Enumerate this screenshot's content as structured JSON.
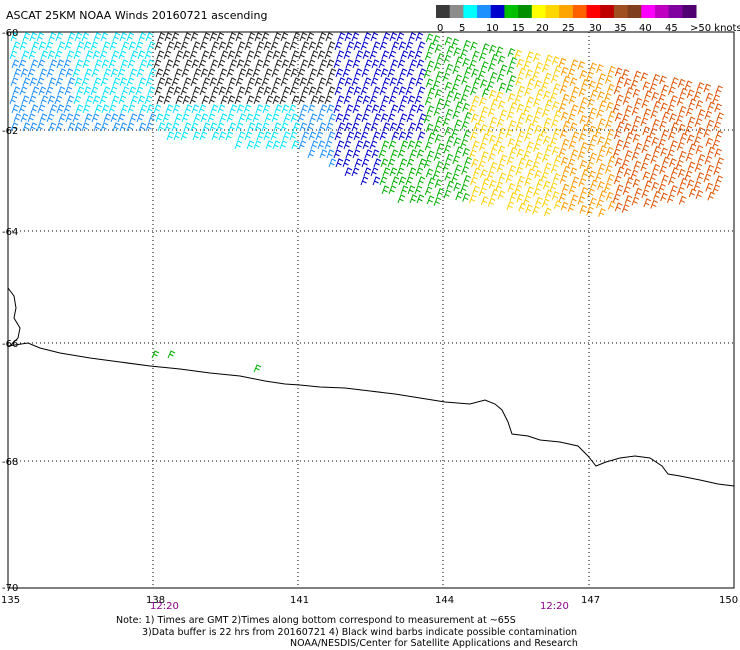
{
  "title": "ASCAT 25KM NOAA Winds 20160721 ascending",
  "legend": {
    "ticks": [
      "0",
      "5",
      "10",
      "15",
      "20",
      "25",
      "30",
      "35",
      "40",
      "45",
      ">50 knots"
    ],
    "colors": [
      "#3a3a3a",
      "#8c8c8c",
      "#00ffff",
      "#1e90ff",
      "#0000cd",
      "#00c000",
      "#009000",
      "#ffff00",
      "#ffd700",
      "#ffa500",
      "#ff6000",
      "#ff0000",
      "#c00000",
      "#a05020",
      "#804020",
      "#ff00ff",
      "#c000c0",
      "#8000a0",
      "#500070"
    ]
  },
  "axes": {
    "lon_labels": [
      "135",
      "138",
      "141",
      "144",
      "147",
      "150"
    ],
    "lat_labels": [
      "-60",
      "-62",
      "-64",
      "-66",
      "-68",
      "-70"
    ],
    "time_labels": [
      {
        "text": "12:20",
        "lon": 138.3
      },
      {
        "text": "12:20",
        "lon": 146.4
      }
    ]
  },
  "notes": {
    "line1": "Note: 1) Times are GMT 2)Times along bottom correspond to measurement at ~65S",
    "line2": "3)Data buffer is 22 hrs from 20160721 4) Black wind barbs indicate possible contamination",
    "line3": "NOAA/NESDIS/Center for Satellite Applications and Research"
  }
}
